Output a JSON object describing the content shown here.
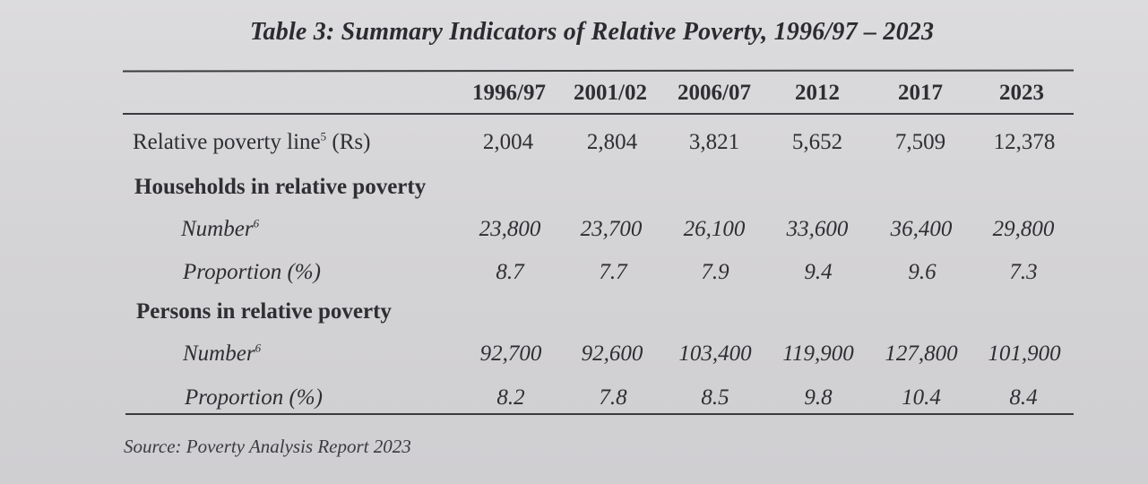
{
  "title": "Table 3: Summary Indicators of Relative Poverty, 1996/97 – 2023",
  "columns": [
    "1996/97",
    "2001/02",
    "2006/07",
    "2012",
    "2017",
    "2023"
  ],
  "rows": {
    "poverty_line": {
      "label": "Relative poverty line",
      "footnote": "5",
      "unit": " (Rs)",
      "values": [
        "2,004",
        "2,804",
        "3,821",
        "5,652",
        "7,509",
        "12,378"
      ]
    },
    "households_heading": "Households in relative poverty",
    "households_number": {
      "label": "Number",
      "footnote": "6",
      "values": [
        "23,800",
        "23,700",
        "26,100",
        "33,600",
        "36,400",
        "29,800"
      ]
    },
    "households_proportion": {
      "label": "Proportion (%)",
      "values": [
        "8.7",
        "7.7",
        "7.9",
        "9.4",
        "9.6",
        "7.3"
      ]
    },
    "persons_heading": "Persons in relative poverty",
    "persons_number": {
      "label": "Number",
      "footnote": "6",
      "values": [
        "92,700",
        "92,600",
        "103,400",
        "119,900",
        "127,800",
        "101,900"
      ]
    },
    "persons_proportion": {
      "label": "Proportion (%)",
      "values": [
        "8.2",
        "7.8",
        "8.5",
        "9.8",
        "10.4",
        "8.4"
      ]
    }
  },
  "source": "Source: Poverty Analysis Report 2023"
}
